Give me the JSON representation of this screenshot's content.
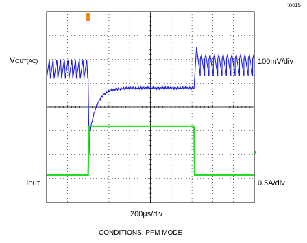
{
  "chart_data": {
    "type": "line",
    "tag": "toc15",
    "x_grid_divisions": 10,
    "y_grid_divisions": 8,
    "grid": true,
    "channels": [
      {
        "name_main": "V",
        "name_sub": "OUT(AC)",
        "scale": "100mV/div",
        "color": "#1a1adb",
        "baseline_div": 5.6,
        "description": "output voltage ripple; dips at load step, then flat; ringing after step down",
        "ripple_amplitude_div": 0.8,
        "dip_min_div": 2.0,
        "flat_level_div": 4.8
      },
      {
        "name_main": "I",
        "name_sub": "OUT",
        "scale": "0.5A/div",
        "color": "#22dd22",
        "low_level_div": 1.15,
        "high_level_div": 3.2,
        "step_up_time_div": 2.0,
        "step_down_time_div": 7.1
      }
    ],
    "xlabel": "200µs/div",
    "trigger_marker_color": "#ee8822",
    "level_marker_color": "#22cc22"
  },
  "caption": "CONDITIONS: PFM MODE"
}
